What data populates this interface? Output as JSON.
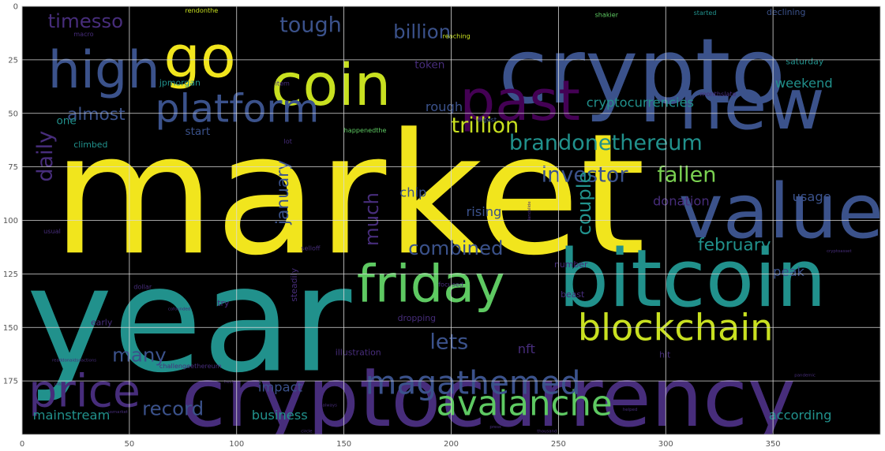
{
  "chart_data": {
    "type": "wordcloud",
    "xlim": [
      0,
      400
    ],
    "ylim": [
      200,
      0
    ],
    "xticks": [
      {
        "value": 0,
        "label": "0"
      },
      {
        "value": 50,
        "label": "50"
      },
      {
        "value": 100,
        "label": "100"
      },
      {
        "value": 150,
        "label": "150"
      },
      {
        "value": 200,
        "label": "200"
      },
      {
        "value": 250,
        "label": "250"
      },
      {
        "value": 300,
        "label": "300"
      },
      {
        "value": 350,
        "label": "350"
      }
    ],
    "yticks": [
      {
        "value": 0,
        "label": "0"
      },
      {
        "value": 25,
        "label": "25"
      },
      {
        "value": 50,
        "label": "50"
      },
      {
        "value": 75,
        "label": "75"
      },
      {
        "value": 100,
        "label": "100"
      },
      {
        "value": 125,
        "label": "125"
      },
      {
        "value": 150,
        "label": "150"
      },
      {
        "value": 175,
        "label": "175"
      }
    ],
    "grid": true,
    "background": "#000000",
    "words": [
      {
        "text": "market",
        "x": 14,
        "y": 115,
        "size": 78,
        "color": "#f1e51d",
        "rotate": 0
      },
      {
        "text": "year",
        "x": 2,
        "y": 170,
        "size": 68,
        "color": "#21918c",
        "rotate": 0
      },
      {
        "text": "cryptocurrency",
        "x": 74,
        "y": 196,
        "size": 38,
        "color": "#472d7b",
        "rotate": 0
      },
      {
        "text": "crypto",
        "x": 222,
        "y": 45,
        "size": 42,
        "color": "#3b528b",
        "rotate": 0
      },
      {
        "text": "bitcoin",
        "x": 250,
        "y": 140,
        "size": 37,
        "color": "#21918c",
        "rotate": 0
      },
      {
        "text": "value",
        "x": 306,
        "y": 108,
        "size": 35,
        "color": "#3b528b",
        "rotate": 0
      },
      {
        "text": "new",
        "x": 306,
        "y": 57,
        "size": 33,
        "color": "#3b528b",
        "rotate": 0
      },
      {
        "text": "coin",
        "x": 116,
        "y": 46,
        "size": 27,
        "color": "#c8e020",
        "rotate": 0
      },
      {
        "text": "go",
        "x": 66,
        "y": 33,
        "size": 27,
        "color": "#f1e51d",
        "rotate": 0
      },
      {
        "text": "high",
        "x": 12,
        "y": 38,
        "size": 24,
        "color": "#3b528b",
        "rotate": 0
      },
      {
        "text": "past",
        "x": 204,
        "y": 53,
        "size": 26,
        "color": "#440154",
        "rotate": 0
      },
      {
        "text": "friday",
        "x": 156,
        "y": 138,
        "size": 24,
        "color": "#5ec962",
        "rotate": 0
      },
      {
        "text": "price",
        "x": 3,
        "y": 187,
        "size": 21,
        "color": "#472d7b",
        "rotate": 0
      },
      {
        "text": "platform",
        "x": 62,
        "y": 54,
        "size": 18,
        "color": "#3b528b",
        "rotate": 0
      },
      {
        "text": "blockchain",
        "x": 259,
        "y": 156,
        "size": 17,
        "color": "#c8e020",
        "rotate": 0
      },
      {
        "text": "avalanche",
        "x": 193,
        "y": 191,
        "size": 16,
        "color": "#5ec962",
        "rotate": 0
      },
      {
        "text": "magathemed",
        "x": 160,
        "y": 181,
        "size": 15,
        "color": "#3b528b",
        "rotate": 0
      },
      {
        "text": "brandonethereum",
        "x": 227,
        "y": 67,
        "size": 10,
        "color": "#21918c",
        "rotate": 0
      },
      {
        "text": "trillion",
        "x": 200,
        "y": 59,
        "size": 10,
        "color": "#c8e020",
        "rotate": 0
      },
      {
        "text": "fallen",
        "x": 296,
        "y": 82,
        "size": 10,
        "color": "#7ad151",
        "rotate": 0
      },
      {
        "text": "investor",
        "x": 242,
        "y": 82,
        "size": 10,
        "color": "#3b528b",
        "rotate": 0
      },
      {
        "text": "tough",
        "x": 120,
        "y": 12,
        "size": 10,
        "color": "#3b528b",
        "rotate": 0
      },
      {
        "text": "billion",
        "x": 173,
        "y": 15,
        "size": 9,
        "color": "#3b528b",
        "rotate": 0
      },
      {
        "text": "timesso",
        "x": 12,
        "y": 10,
        "size": 9,
        "color": "#472d7b",
        "rotate": 0
      },
      {
        "text": "daily",
        "x": 14,
        "y": 82,
        "size": 10,
        "color": "#472d7b",
        "rotate": -90
      },
      {
        "text": "almost",
        "x": 21,
        "y": 53,
        "size": 8,
        "color": "#3b528b",
        "rotate": 0
      },
      {
        "text": "much",
        "x": 166,
        "y": 112,
        "size": 9,
        "color": "#472d7b",
        "rotate": -90
      },
      {
        "text": "couple",
        "x": 265,
        "y": 107,
        "size": 9,
        "color": "#21918c",
        "rotate": -90
      },
      {
        "text": "lets",
        "x": 190,
        "y": 160,
        "size": 10,
        "color": "#3b528b",
        "rotate": 0
      },
      {
        "text": "record",
        "x": 56,
        "y": 191,
        "size": 9,
        "color": "#3b528b",
        "rotate": 0
      },
      {
        "text": "many",
        "x": 42,
        "y": 166,
        "size": 9,
        "color": "#3b528b",
        "rotate": 0
      },
      {
        "text": "combined",
        "x": 180,
        "y": 116,
        "size": 9,
        "color": "#3b528b",
        "rotate": 0
      },
      {
        "text": "february",
        "x": 315,
        "y": 114,
        "size": 8,
        "color": "#21918c",
        "rotate": 0
      },
      {
        "text": "january",
        "x": 124,
        "y": 102,
        "size": 8,
        "color": "#3b528b",
        "rotate": -90
      },
      {
        "text": "cryptocurrencies",
        "x": 263,
        "y": 47,
        "size": 6,
        "color": "#21918c",
        "rotate": 0
      },
      {
        "text": "weekend",
        "x": 351,
        "y": 38,
        "size": 6,
        "color": "#21918c",
        "rotate": 0
      },
      {
        "text": "donation",
        "x": 294,
        "y": 93,
        "size": 6,
        "color": "#472d7b",
        "rotate": 0
      },
      {
        "text": "according",
        "x": 348,
        "y": 193,
        "size": 6,
        "color": "#21918c",
        "rotate": 0
      },
      {
        "text": "business",
        "x": 107,
        "y": 193,
        "size": 6,
        "color": "#21918c",
        "rotate": 0
      },
      {
        "text": "mainstream",
        "x": 5,
        "y": 193,
        "size": 6,
        "color": "#21918c",
        "rotate": 0
      },
      {
        "text": "impact",
        "x": 110,
        "y": 180,
        "size": 6,
        "color": "#3b528b",
        "rotate": 0
      },
      {
        "text": "rising",
        "x": 207,
        "y": 98,
        "size": 6,
        "color": "#3b528b",
        "rotate": 0
      },
      {
        "text": "chip",
        "x": 176,
        "y": 89,
        "size": 6,
        "color": "#3b528b",
        "rotate": 0
      },
      {
        "text": "nft",
        "x": 231,
        "y": 162,
        "size": 6,
        "color": "#472d7b",
        "rotate": 0
      },
      {
        "text": "peak",
        "x": 350,
        "y": 126,
        "size": 6,
        "color": "#3b528b",
        "rotate": 0
      },
      {
        "text": "usage",
        "x": 359,
        "y": 91,
        "size": 6,
        "color": "#3b528b",
        "rotate": 0
      },
      {
        "text": "rough",
        "x": 188,
        "y": 49,
        "size": 6,
        "color": "#3b528b",
        "rotate": 0
      },
      {
        "text": "start",
        "x": 76,
        "y": 60,
        "size": 5,
        "color": "#3b528b",
        "rotate": 0
      },
      {
        "text": "one",
        "x": 16,
        "y": 55,
        "size": 5,
        "color": "#21918c",
        "rotate": 0
      },
      {
        "text": "token",
        "x": 183,
        "y": 29,
        "size": 5,
        "color": "#472d7b",
        "rotate": 0
      },
      {
        "text": "jpmorgan",
        "x": 64,
        "y": 37,
        "size": 4,
        "color": "#21918c",
        "rotate": 0
      },
      {
        "text": "rendonthe",
        "x": 76,
        "y": 3,
        "size": 3,
        "color": "#c8e020",
        "rotate": 0
      },
      {
        "text": "shakier",
        "x": 267,
        "y": 5,
        "size": 3,
        "color": "#5ec962",
        "rotate": 0
      },
      {
        "text": "started",
        "x": 313,
        "y": 4,
        "size": 3,
        "color": "#21918c",
        "rotate": 0
      },
      {
        "text": "declining",
        "x": 347,
        "y": 4,
        "size": 4,
        "color": "#3b528b",
        "rotate": 0
      },
      {
        "text": "reaching",
        "x": 196,
        "y": 15,
        "size": 3,
        "color": "#c8e020",
        "rotate": 0
      },
      {
        "text": "saturday",
        "x": 356,
        "y": 27,
        "size": 4,
        "color": "#21918c",
        "rotate": 0
      },
      {
        "text": "monthslate",
        "x": 316,
        "y": 42,
        "size": 3,
        "color": "#472d7b",
        "rotate": 0
      },
      {
        "text": "happenedthe",
        "x": 150,
        "y": 59,
        "size": 3,
        "color": "#5ec962",
        "rotate": 0
      },
      {
        "text": "climbed",
        "x": 24,
        "y": 66,
        "size": 4,
        "color": "#21918c",
        "rotate": 0
      },
      {
        "text": "digest",
        "x": 212,
        "y": 54,
        "size": 3,
        "color": "#3b528b",
        "rotate": 0
      },
      {
        "text": "try",
        "x": 91,
        "y": 140,
        "size": 4,
        "color": "#472d7b",
        "rotate": 0
      },
      {
        "text": "early",
        "x": 32,
        "y": 149,
        "size": 4,
        "color": "#472d7b",
        "rotate": 0
      },
      {
        "text": "dropping",
        "x": 175,
        "y": 147,
        "size": 4,
        "color": "#472d7b",
        "rotate": 0
      },
      {
        "text": "number",
        "x": 248,
        "y": 122,
        "size": 4,
        "color": "#472d7b",
        "rotate": 0
      },
      {
        "text": "beast",
        "x": 251,
        "y": 136,
        "size": 4,
        "color": "#472d7b",
        "rotate": 0
      },
      {
        "text": "illustration",
        "x": 146,
        "y": 163,
        "size": 4,
        "color": "#472d7b",
        "rotate": 0
      },
      {
        "text": "hit",
        "x": 297,
        "y": 164,
        "size": 4,
        "color": "#472d7b",
        "rotate": 0
      },
      {
        "text": "steadily",
        "x": 128,
        "y": 138,
        "size": 4,
        "color": "#472d7b",
        "rotate": -90
      },
      {
        "text": "selloff",
        "x": 130,
        "y": 114,
        "size": 3,
        "color": "#472d7b",
        "rotate": 0
      },
      {
        "text": "macro",
        "x": 24,
        "y": 14,
        "size": 3,
        "color": "#472d7b",
        "rotate": 0
      },
      {
        "text": "usual",
        "x": 10,
        "y": 106,
        "size": 3,
        "color": "#472d7b",
        "rotate": 0
      },
      {
        "text": "challengeethereum",
        "x": 64,
        "y": 169,
        "size": 3,
        "color": "#472d7b",
        "rotate": 0
      },
      {
        "text": "readdonaidsoactions",
        "x": 14,
        "y": 166,
        "size": 2,
        "color": "#472d7b",
        "rotate": 0
      },
      {
        "text": "cofounded",
        "x": 68,
        "y": 142,
        "size": 2,
        "color": "#472d7b",
        "rotate": 0
      },
      {
        "text": "lot",
        "x": 122,
        "y": 64,
        "size": 3,
        "color": "#472d7b",
        "rotate": 0
      },
      {
        "text": "item",
        "x": 118,
        "y": 37,
        "size": 3,
        "color": "#472d7b",
        "rotate": 0
      },
      {
        "text": "pandemic",
        "x": 360,
        "y": 173,
        "size": 2,
        "color": "#472d7b",
        "rotate": 0
      },
      {
        "text": "cryptoasset",
        "x": 375,
        "y": 115,
        "size": 2,
        "color": "#472d7b",
        "rotate": 0
      },
      {
        "text": "dollar",
        "x": 52,
        "y": 132,
        "size": 3,
        "color": "#472d7b",
        "rotate": 0
      },
      {
        "text": "focused",
        "x": 194,
        "y": 131,
        "size": 3,
        "color": "#472d7b",
        "rotate": 0
      },
      {
        "text": "landslide",
        "x": 237,
        "y": 100,
        "size": 2,
        "color": "#472d7b",
        "rotate": -90
      },
      {
        "text": "press",
        "x": 218,
        "y": 197,
        "size": 2,
        "color": "#472d7b",
        "rotate": 0
      },
      {
        "text": "thousand",
        "x": 240,
        "y": 199,
        "size": 2,
        "color": "#472d7b",
        "rotate": 0
      },
      {
        "text": "circle",
        "x": 130,
        "y": 199,
        "size": 2,
        "color": "#472d7b",
        "rotate": 0
      },
      {
        "text": "plane",
        "x": 15,
        "y": 177,
        "size": 2,
        "color": "#472d7b",
        "rotate": 0
      },
      {
        "text": "helped",
        "x": 280,
        "y": 189,
        "size": 2,
        "color": "#472d7b",
        "rotate": 0
      },
      {
        "text": "fresh",
        "x": 94,
        "y": 176,
        "size": 2,
        "color": "#472d7b",
        "rotate": 0
      },
      {
        "text": "usmarket",
        "x": 40,
        "y": 190,
        "size": 2,
        "color": "#472d7b",
        "rotate": 0
      },
      {
        "text": "always",
        "x": 140,
        "y": 187,
        "size": 2,
        "color": "#472d7b",
        "rotate": 0
      }
    ]
  }
}
